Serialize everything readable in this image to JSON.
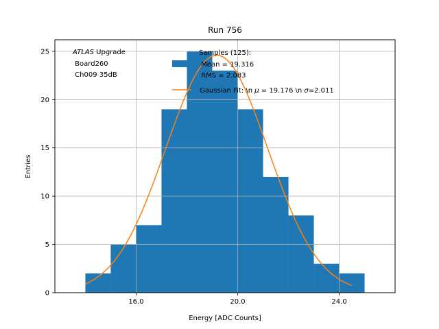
{
  "chart_data": {
    "type": "histogram",
    "title": "Run 756",
    "xlabel": "Energy [ADC Counts]",
    "ylabel": "Entries",
    "xlim": [
      12.8,
      26.2
    ],
    "ylim": [
      0,
      26.2
    ],
    "grid": true,
    "xticks": [
      16.0,
      20.0,
      24.0
    ],
    "xtick_labels": [
      "16.0",
      "20.0",
      "24.0"
    ],
    "yticks": [
      0,
      5,
      10,
      15,
      20,
      25
    ],
    "ytick_labels": [
      "0",
      "5",
      "10",
      "15",
      "20",
      "25"
    ],
    "bar_color": "#1f77b4",
    "fit_color": "#ff7f0e",
    "bins": [
      {
        "x0": 14,
        "x1": 15,
        "count": 2
      },
      {
        "x0": 15,
        "x1": 16,
        "count": 5
      },
      {
        "x0": 16,
        "x1": 17,
        "count": 7
      },
      {
        "x0": 17,
        "x1": 18,
        "count": 19
      },
      {
        "x0": 18,
        "x1": 19,
        "count": 25
      },
      {
        "x0": 19,
        "x1": 20,
        "count": 23
      },
      {
        "x0": 20,
        "x1": 21,
        "count": 19
      },
      {
        "x0": 21,
        "x1": 22,
        "count": 12
      },
      {
        "x0": 22,
        "x1": 23,
        "count": 8
      },
      {
        "x0": 23,
        "x1": 24,
        "count": 3
      },
      {
        "x0": 24,
        "x1": 25,
        "count": 2
      }
    ],
    "fit": {
      "mu": 19.176,
      "sigma": 2.011,
      "amplitude": 24.6,
      "x_range": [
        14.0,
        24.5
      ]
    },
    "annotation": {
      "line1_italic": "ATLAS",
      "line1_rest": " Upgrade",
      "line2": " Board260",
      "line3": " Ch009 35dB"
    },
    "legend": {
      "placement": "top-center",
      "hist_line1": "Samples (125):",
      "hist_line2": " Mean = 19.316",
      "hist_line3": " RMS = 2.083",
      "fit_prefix": "Gaussian Fit: \\n ",
      "fit_mu_sym": "μ",
      "fit_mid": " = 19.176 \\n ",
      "fit_sigma_sym": "σ",
      "fit_suffix": "=2.011"
    }
  }
}
